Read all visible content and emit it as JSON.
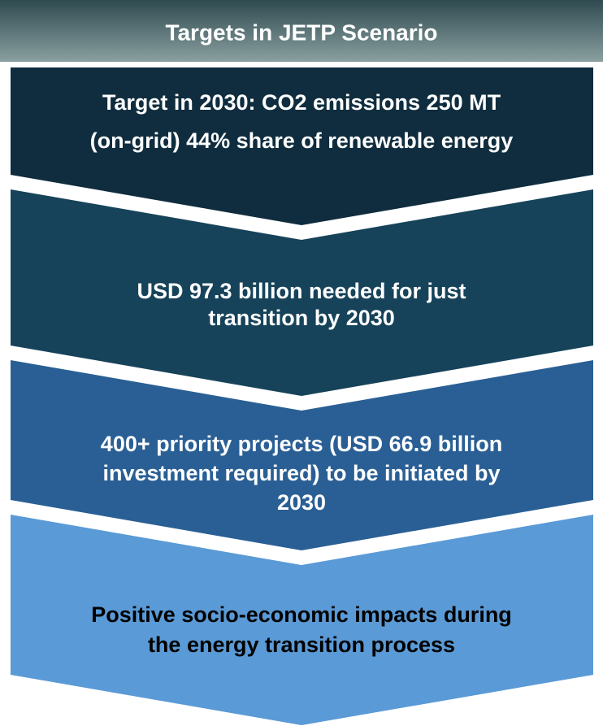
{
  "header": {
    "title": "Targets in JETP Scenario"
  },
  "chevrons": [
    {
      "lines": [
        "Target in 2030: CO2 emissions 250 MT",
        "(on-grid) 44% share of renewable energy"
      ]
    },
    {
      "lines": [
        "USD 97.3 billion needed for just",
        "transition by 2030"
      ]
    },
    {
      "lines": [
        "400+ priority projects (USD 66.9 billion",
        "investment required) to be initiated by",
        "2030"
      ]
    },
    {
      "lines": [
        "Positive socio-economic impacts during",
        "the energy transition process"
      ]
    }
  ]
}
